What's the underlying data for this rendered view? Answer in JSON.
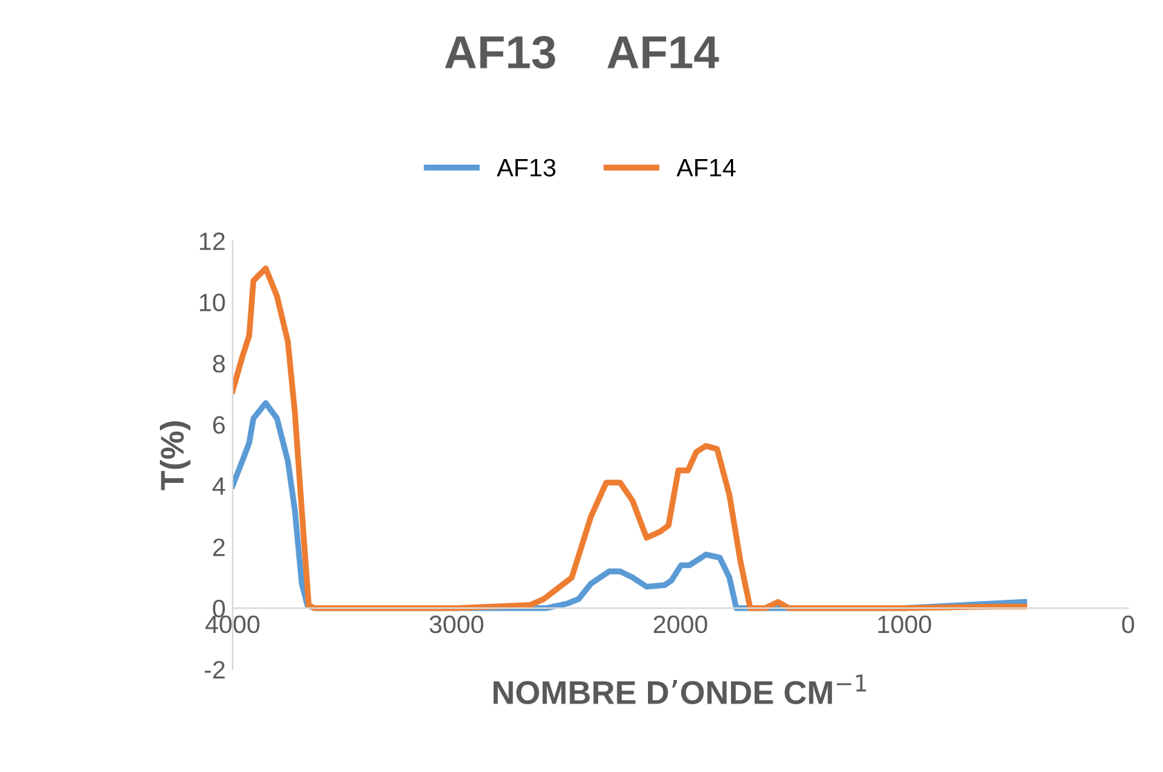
{
  "chart_data": {
    "type": "line",
    "title": "AF13    AF14",
    "xlabel": "NOMBRE D’ONDE CM$^{−1}$",
    "ylabel": "T(%)",
    "xlim": [
      4000,
      0
    ],
    "xticks": [
      4000,
      3000,
      2000,
      1000,
      0
    ],
    "ylim": [
      -2,
      12
    ],
    "yticks": [
      -2,
      0,
      2,
      4,
      6,
      8,
      10,
      12
    ],
    "grid": false,
    "legend": "top",
    "marker": "none",
    "line_style": "solid",
    "series": [
      {
        "name": "AF13",
        "color": "#5b9bd5",
        "x": [
          4000,
          3957,
          3926,
          3907,
          3852,
          3802,
          3753,
          3722,
          3691,
          3666,
          3635,
          3000,
          2600,
          2504,
          2454,
          2399,
          2318,
          2269,
          2213,
          2151,
          2071,
          2040,
          1997,
          1960,
          1886,
          1824,
          1781,
          1750,
          1700,
          1000,
          464
        ],
        "values": [
          4.0,
          4.8,
          5.4,
          6.2,
          6.7,
          6.2,
          4.8,
          3.2,
          0.8,
          0.1,
          0,
          0,
          0,
          0.15,
          0.3,
          0.8,
          1.2,
          1.2,
          1.0,
          0.7,
          0.75,
          0.9,
          1.4,
          1.4,
          1.75,
          1.65,
          1.0,
          0,
          0,
          0,
          0.2
        ]
      },
      {
        "name": "AF14",
        "color": "#ed7d31",
        "x": [
          4000,
          3957,
          3926,
          3907,
          3852,
          3802,
          3753,
          3722,
          3691,
          3660,
          3635,
          3000,
          2671,
          2609,
          2485,
          2399,
          2331,
          2269,
          2213,
          2151,
          2090,
          2053,
          2009,
          1966,
          1929,
          1886,
          1836,
          1781,
          1731,
          1688,
          1620,
          1564,
          1515,
          1000,
          600,
          464
        ],
        "values": [
          7.1,
          8.2,
          8.9,
          10.7,
          11.1,
          10.2,
          8.7,
          6.4,
          3.2,
          0.1,
          0,
          0,
          0.1,
          0.3,
          1.0,
          3.0,
          4.1,
          4.1,
          3.5,
          2.3,
          2.5,
          2.7,
          4.5,
          4.5,
          5.1,
          5.3,
          5.2,
          3.7,
          1.5,
          0,
          0,
          0.2,
          0,
          0,
          0.05,
          0.05
        ]
      }
    ]
  }
}
